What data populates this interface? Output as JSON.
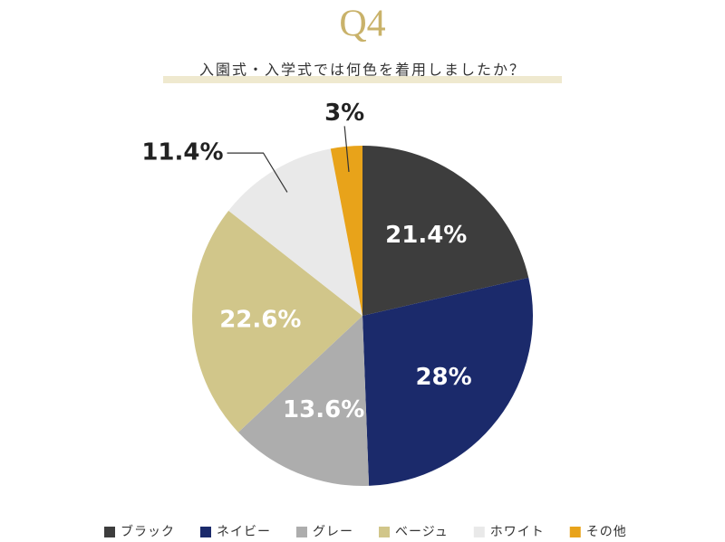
{
  "chart_data": {
    "type": "pie",
    "title": "Q4",
    "subtitle": "入園式・入学式では何色を着用しましたか？",
    "categories": [
      "ブラック",
      "ネイビー",
      "グレー",
      "ベージュ",
      "ホワイト",
      "その他"
    ],
    "values": [
      21.4,
      28,
      13.6,
      22.6,
      11.4,
      3
    ],
    "value_labels": [
      "21.4%",
      "28%",
      "13.6%",
      "22.6%",
      "11.4%",
      "3%"
    ],
    "colors": [
      "#3d3d3d",
      "#1b2a6b",
      "#adadad",
      "#d1c68a",
      "#e9e9e9",
      "#e8a31a"
    ],
    "legend": "bottom"
  }
}
